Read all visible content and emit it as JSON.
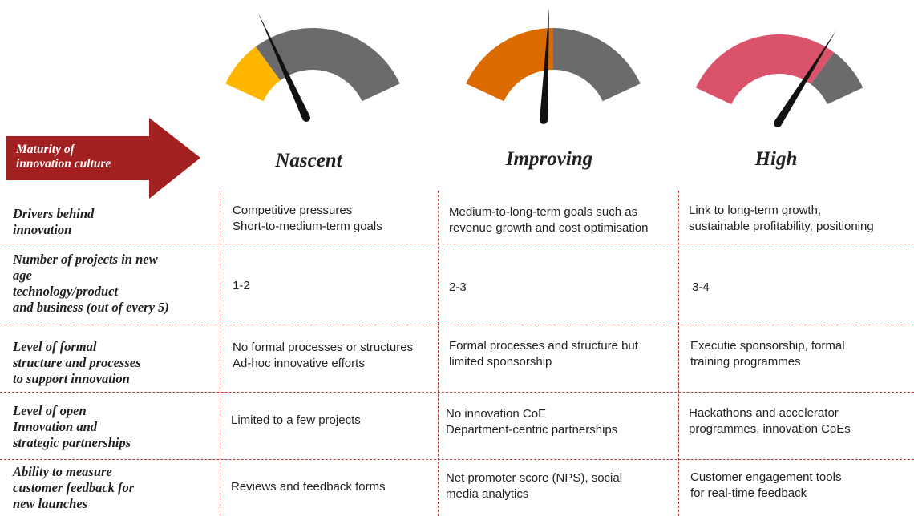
{
  "header": {
    "arrow_label": [
      "Maturity of",
      "innovation culture"
    ],
    "stages": [
      "Nascent",
      "Improving",
      "High"
    ]
  },
  "gauges": [
    {
      "stage": "Nascent",
      "fill_fraction": 0.22,
      "fill_color": "#FFB600",
      "track_color": "#6B6B6E"
    },
    {
      "stage": "Improving",
      "fill_fraction": 0.5,
      "fill_color": "#DB6A00",
      "track_color": "#6B6B6E"
    },
    {
      "stage": "High",
      "fill_fraction": 0.78,
      "fill_color": "#DB536A",
      "track_color": "#6B6B6E"
    }
  ],
  "rows": [
    {
      "label": [
        "Drivers behind",
        "innovation"
      ],
      "nascent": [
        "Competitive pressures",
        "Short-to-medium-term goals"
      ],
      "improving": [
        "Medium-to-long-term goals such as",
        "revenue growth and cost optimisation"
      ],
      "high": [
        "Link to long-term growth,",
        "sustainable profitability, positioning"
      ]
    },
    {
      "label": [
        "Number of projects in new",
        "age",
        "technology/product",
        "and business (out of every 5)"
      ],
      "nascent": [
        "1-2"
      ],
      "improving": [
        "2-3"
      ],
      "high": [
        "3-4"
      ]
    },
    {
      "label": [
        "Level of formal",
        "structure and processes",
        "to support innovation"
      ],
      "nascent": [
        "No formal processes or structures",
        "Ad-hoc innovative efforts"
      ],
      "improving": [
        "Formal processes and structure but",
        "limited sponsorship"
      ],
      "high": [
        "Executie sponsorship, formal",
        "training programmes"
      ]
    },
    {
      "label": [
        "Level of open",
        "Innovation and",
        "strategic partnerships"
      ],
      "nascent": [
        "Limited to a few projects"
      ],
      "improving": [
        "No innovation CoE",
        "Department-centric partnerships"
      ],
      "high": [
        "Hackathons and accelerator",
        "programmes, innovation CoEs"
      ]
    },
    {
      "label": [
        "Ability to measure",
        "customer feedback for",
        "new launches"
      ],
      "nascent": [
        "Reviews and feedback forms"
      ],
      "improving": [
        "Net promoter score (NPS), social",
        "media analytics"
      ],
      "high": [
        "Customer engagement tools",
        "for real-time feedback"
      ]
    }
  ],
  "colors": {
    "arrow": "#A32020",
    "divider": "#B23B3B"
  }
}
